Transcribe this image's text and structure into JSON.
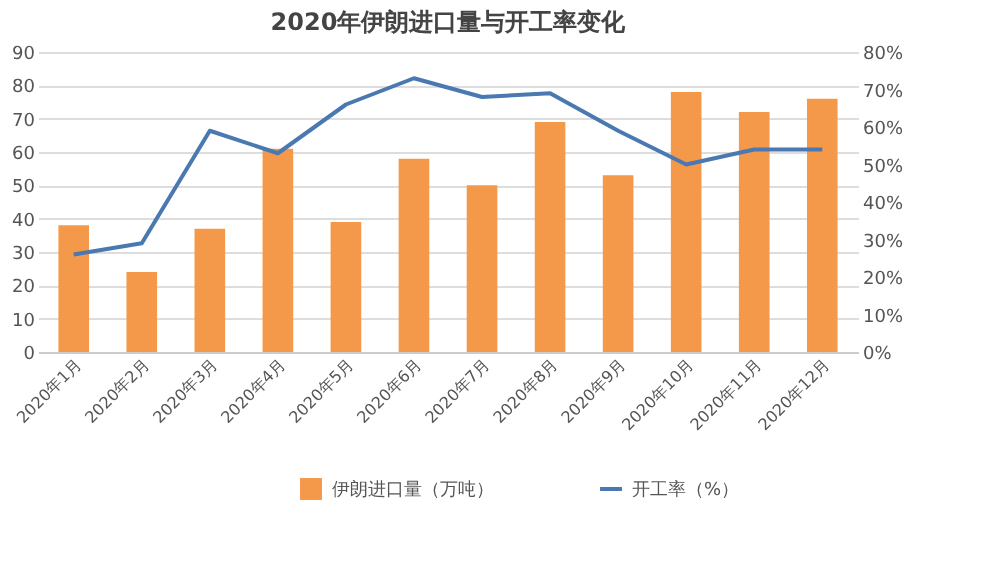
{
  "chart_data": {
    "type": "bar",
    "title": "2020年伊朗进口量与开工率变化",
    "categories": [
      "2020年1月",
      "2020年2月",
      "2020年3月",
      "2020年4月",
      "2020年5月",
      "2020年6月",
      "2020年7月",
      "2020年8月",
      "2020年9月",
      "2020年10月",
      "2020年11月",
      "2020年12月"
    ],
    "series": [
      {
        "name": "伊朗进口量（万吨）",
        "color": "#f4994a",
        "values": [
          38,
          24,
          37,
          61,
          39,
          58,
          50,
          69,
          53,
          78,
          72,
          76
        ]
      },
      {
        "name": "开工率（%）",
        "type": "line",
        "axis": "y2",
        "color": "#4a78b0",
        "values": [
          26,
          29,
          59,
          53,
          66,
          73,
          68,
          69,
          59,
          50,
          54,
          54
        ]
      }
    ],
    "ylim": [
      0,
      90
    ],
    "yticks": [
      0,
      10,
      20,
      30,
      40,
      50,
      60,
      70,
      80,
      90
    ],
    "y2lim": [
      0,
      80
    ],
    "y2ticks": [
      {
        "value": 0,
        "label": "0%"
      },
      {
        "value": 10,
        "label": "10%"
      },
      {
        "value": 20,
        "label": "20%"
      },
      {
        "value": 30,
        "label": "30%"
      },
      {
        "value": 40,
        "label": "40%"
      },
      {
        "value": 50,
        "label": "50%"
      },
      {
        "value": 60,
        "label": "60%"
      },
      {
        "value": 70,
        "label": "70%"
      },
      {
        "value": 80,
        "label": "80%"
      }
    ],
    "grid": "y",
    "legend": "bottom",
    "marker": "none",
    "line_style": "solid"
  }
}
